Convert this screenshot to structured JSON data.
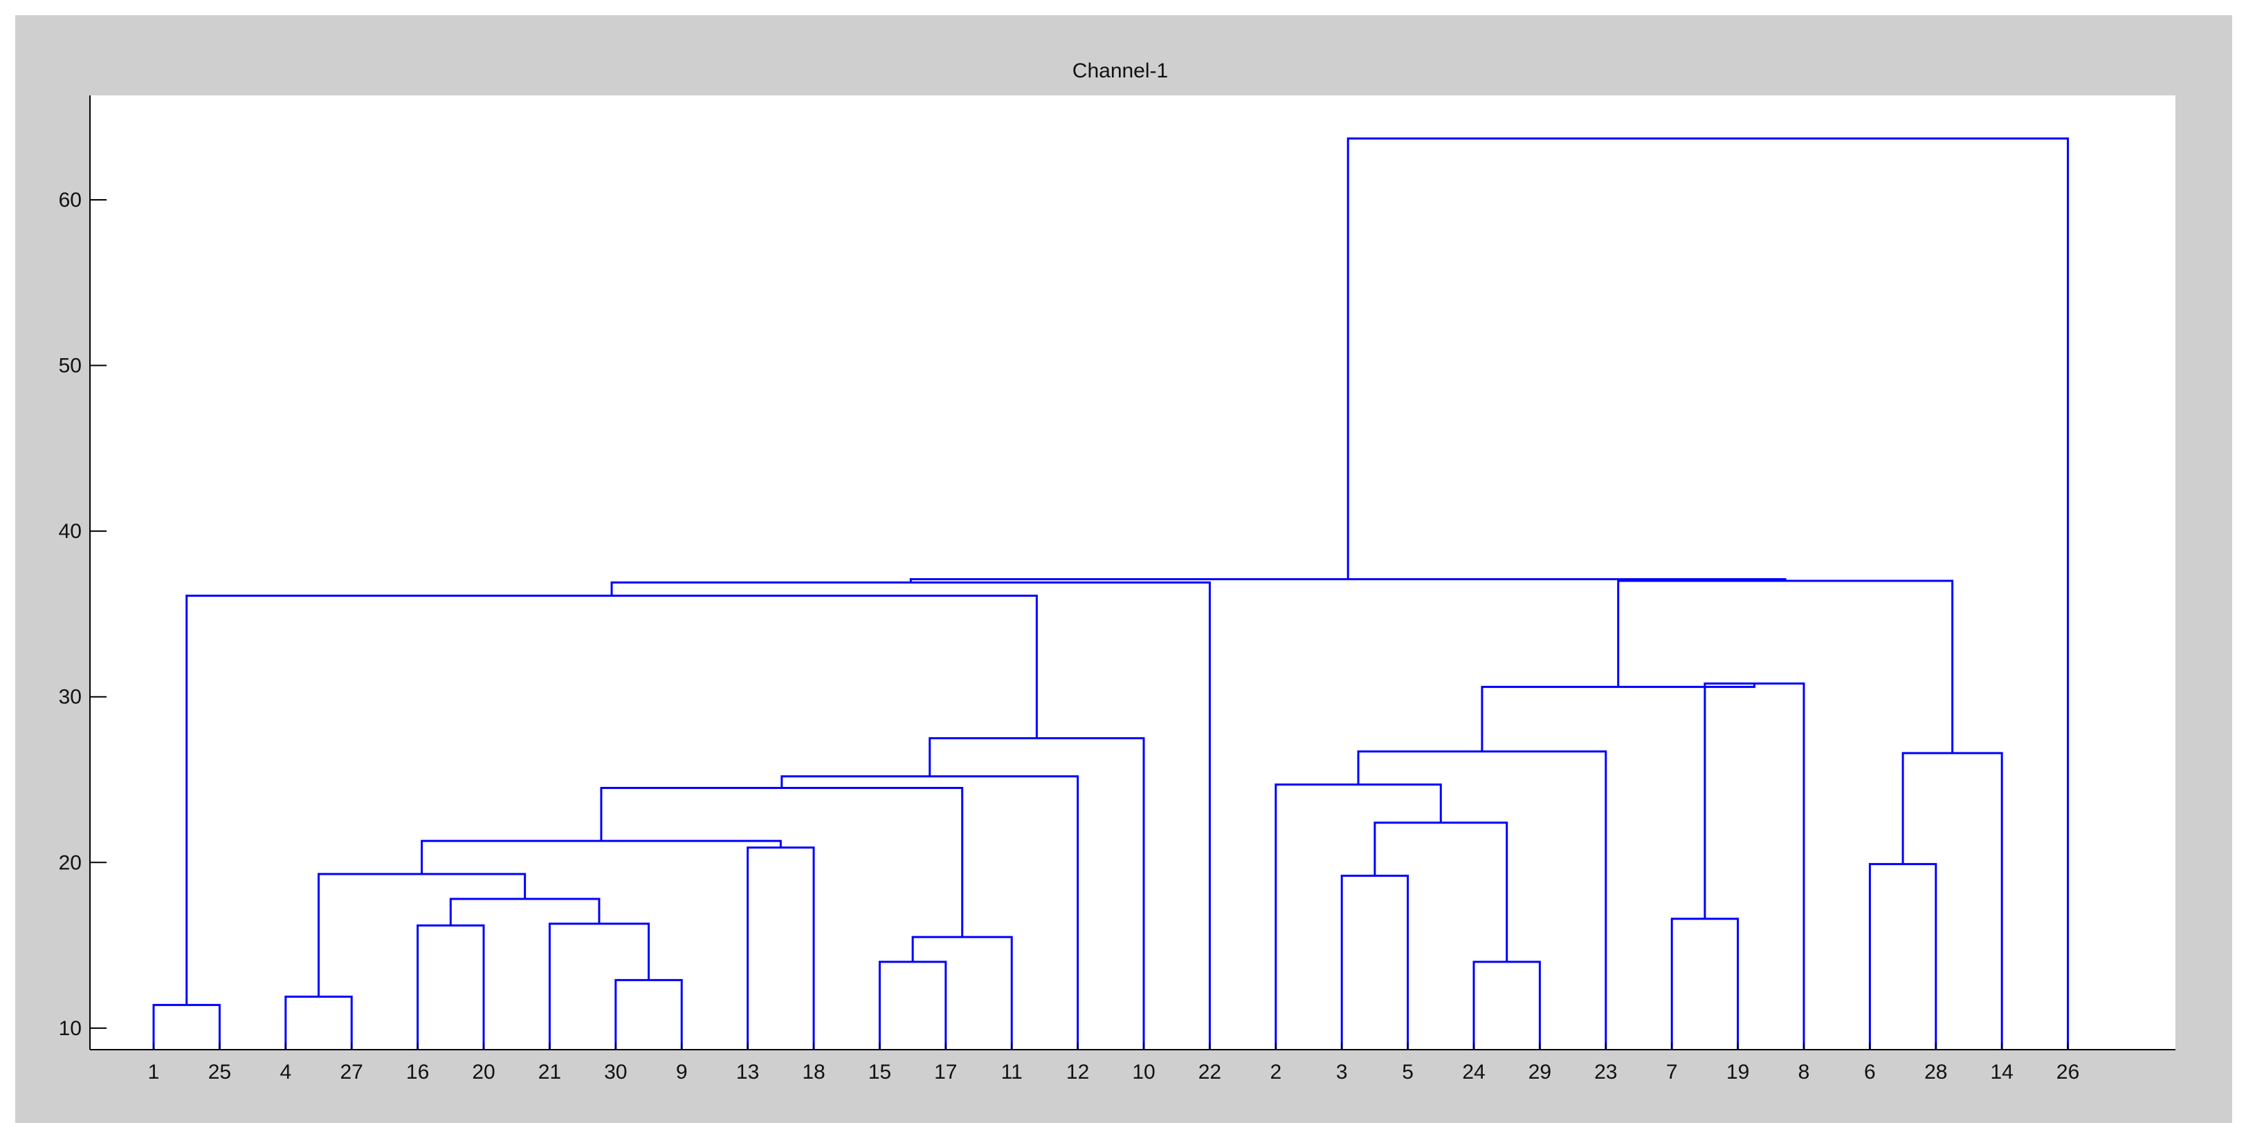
{
  "chart_data": {
    "type": "dendrogram",
    "title": "Channel-1",
    "xlabel": "",
    "ylabel": "",
    "ylim": [
      8.7,
      66.3
    ],
    "yticks": [
      10,
      20,
      30,
      40,
      50,
      60
    ],
    "leaf_order": [
      "1",
      "25",
      "4",
      "27",
      "16",
      "20",
      "21",
      "30",
      "9",
      "13",
      "18",
      "15",
      "17",
      "11",
      "12",
      "10",
      "22",
      "2",
      "3",
      "5",
      "24",
      "29",
      "23",
      "7",
      "19",
      "8",
      "6",
      "28",
      "14",
      "26"
    ],
    "link_color": "#0000ff",
    "merges": [
      {
        "name": "A1",
        "left": "1",
        "right": "25",
        "height": 11.4
      },
      {
        "name": "A2",
        "left": "4",
        "right": "27",
        "height": 11.9
      },
      {
        "name": "A3",
        "left": "16",
        "right": "20",
        "height": 16.2
      },
      {
        "name": "A4",
        "left": "30",
        "right": "9",
        "height": 12.9
      },
      {
        "name": "A5",
        "left": "21",
        "right": "A4",
        "height": 16.3
      },
      {
        "name": "A6",
        "left": "A3",
        "right": "A5",
        "height": 17.8
      },
      {
        "name": "A7",
        "left": "A2",
        "right": "A6",
        "height": 19.3
      },
      {
        "name": "A8",
        "left": "13",
        "right": "18",
        "height": 20.9
      },
      {
        "name": "A9",
        "left": "A7",
        "right": "A8",
        "height": 21.3
      },
      {
        "name": "A10",
        "left": "15",
        "right": "17",
        "height": 14.0
      },
      {
        "name": "A11",
        "left": "A10",
        "right": "11",
        "height": 15.5
      },
      {
        "name": "A12",
        "left": "A9",
        "right": "A11",
        "height": 24.5
      },
      {
        "name": "A13",
        "left": "A12",
        "right": "12",
        "height": 25.2
      },
      {
        "name": "A14",
        "left": "A13",
        "right": "10",
        "height": 27.5
      },
      {
        "name": "A15",
        "left": "A1",
        "right": "A14",
        "height": 36.1
      },
      {
        "name": "A16",
        "left": "A15",
        "right": "22",
        "height": 36.9
      },
      {
        "name": "B1",
        "left": "24",
        "right": "29",
        "height": 14.0
      },
      {
        "name": "B2",
        "left": "3",
        "right": "5",
        "height": 19.2
      },
      {
        "name": "B3",
        "left": "B2",
        "right": "B1",
        "height": 22.4
      },
      {
        "name": "B4",
        "left": "2",
        "right": "B3",
        "height": 24.7
      },
      {
        "name": "B5",
        "left": "B4",
        "right": "23",
        "height": 26.7
      },
      {
        "name": "B6",
        "left": "7",
        "right": "19",
        "height": 16.6
      },
      {
        "name": "B7",
        "left": "B6",
        "right": "8",
        "height": 30.8
      },
      {
        "name": "B8",
        "left": "B5",
        "right": "B7",
        "height": 30.6
      },
      {
        "name": "C1",
        "left": "6",
        "right": "28",
        "height": 19.9
      },
      {
        "name": "C2",
        "left": "C1",
        "right": "14",
        "height": 26.6
      },
      {
        "name": "C3",
        "left": "B8",
        "right": "C2",
        "height": 37.0
      },
      {
        "name": "D1",
        "left": "A16",
        "right": "C3",
        "height": 37.1
      },
      {
        "name": "ROOT",
        "left": "D1",
        "right": "26",
        "height": 63.7
      }
    ]
  }
}
